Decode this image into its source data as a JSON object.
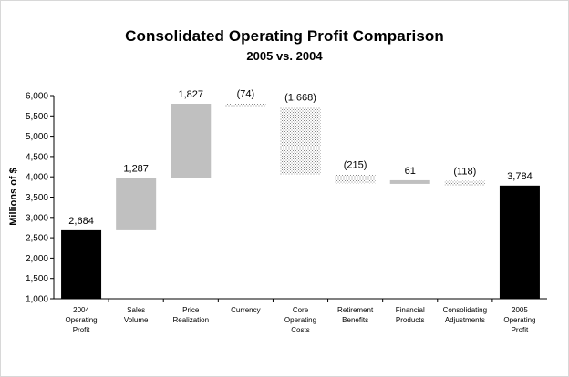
{
  "chart_data": {
    "type": "bar",
    "subtype": "waterfall",
    "title": "Consolidated Operating Profit Comparison",
    "subtitle": "2005 vs. 2004",
    "ylabel": "Millions of $",
    "xlabel": "",
    "ylim": [
      1000,
      6000
    ],
    "yticks": [
      "1,000",
      "1,500",
      "2,000",
      "2,500",
      "3,000",
      "3,500",
      "4,000",
      "4,500",
      "5,000",
      "5,500",
      "6,000"
    ],
    "grid": false,
    "legend": "none",
    "colors": {
      "total": "#000000",
      "increase": "#c0c0c0",
      "decrease_pattern": "#9a9a9a"
    },
    "bars": [
      {
        "category": [
          "2004",
          "Operating",
          "Profit"
        ],
        "kind": "total",
        "start": 1000,
        "end": 2684,
        "label": "2,684"
      },
      {
        "category": [
          "Sales",
          "Volume"
        ],
        "kind": "increase",
        "start": 2684,
        "end": 3971,
        "label": "1,287"
      },
      {
        "category": [
          "Price",
          "Realization"
        ],
        "kind": "increase",
        "start": 3971,
        "end": 5798,
        "label": "1,827"
      },
      {
        "category": [
          "Currency"
        ],
        "kind": "decrease",
        "start": 5798,
        "end": 5724,
        "label": "(74)"
      },
      {
        "category": [
          "Core",
          "Operating",
          "Costs"
        ],
        "kind": "decrease",
        "start": 5724,
        "end": 4056,
        "label": "(1,668)"
      },
      {
        "category": [
          "Retirement",
          "Benefits"
        ],
        "kind": "decrease",
        "start": 4056,
        "end": 3841,
        "label": "(215)"
      },
      {
        "category": [
          "Financial",
          "Products"
        ],
        "kind": "increase",
        "start": 3841,
        "end": 3902,
        "label": "61"
      },
      {
        "category": [
          "Consolidating",
          "Adjustments"
        ],
        "kind": "decrease",
        "start": 3902,
        "end": 3784,
        "label": "(118)"
      },
      {
        "category": [
          "2005",
          "Operating",
          "Profit"
        ],
        "kind": "total",
        "start": 1000,
        "end": 3784,
        "label": "3,784"
      }
    ]
  }
}
